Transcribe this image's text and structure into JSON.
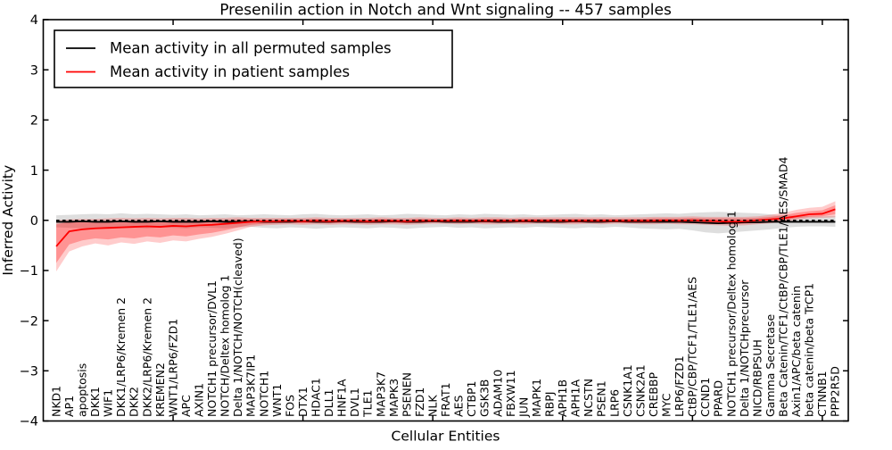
{
  "window": {
    "background": "#ffffff"
  },
  "title": "Presenilin action in Notch and Wnt signaling -- 457 samples",
  "legend": {
    "position": "upper left",
    "items": [
      {
        "label": "Mean activity in all permuted samples",
        "color": "#000000"
      },
      {
        "label": "Mean activity in patient samples",
        "color": "#ff0000"
      }
    ]
  },
  "colors": {
    "frame": "#000000",
    "permuted_line": "#000000",
    "patient_line": "#ff0000",
    "permuted_band": "rgba(0,0,0,0.13)",
    "patient_band_outer": "rgba(255,0,0,0.20)",
    "patient_band_inner": "rgba(255,0,0,0.28)",
    "zero_line": "#000000"
  },
  "chart_data": {
    "type": "line",
    "title": "Presenilin action in Notch and Wnt signaling -- 457 samples",
    "xlabel": "Cellular Entities",
    "ylabel": "Inferred Activity",
    "ylim": [
      -4,
      4
    ],
    "xlim": [
      0,
      62
    ],
    "grid": false,
    "legend_position": "upper left",
    "ytick_values": [
      4,
      3,
      2,
      1,
      0,
      -1,
      -2,
      -3,
      -4
    ],
    "ytick_labels": [
      "4",
      "3",
      "2",
      "1",
      "0",
      "−1",
      "−2",
      "−3",
      "−4"
    ],
    "xtick_values": [
      10,
      20,
      30,
      40,
      50,
      60
    ],
    "baseline": {
      "value": 0,
      "style": "dashed",
      "color": "#000000"
    },
    "categories": [
      "NKD1",
      "AP1",
      "apoptosis",
      "DKK1",
      "WIF1",
      "DKK1/LRP6/Kremen 2",
      "DKK2",
      "DKK2/LRP6/Kremen 2",
      "KREMEN2",
      "WNT1/LRP6/FZD1",
      "APC",
      "AXIN1",
      "NOTCH1 precursor/DVL1",
      "NOTCH/Deltex homolog 1",
      "Delta 1/NOTCH/NOTCH(cleaved)",
      "MAP3K7IP1",
      "NOTCH1",
      "WNT1",
      "FOS",
      "DTX1",
      "HDAC1",
      "DLL1",
      "HNF1A",
      "DVL1",
      "TLE1",
      "MAP3K7",
      "MAPK3",
      "PSENEN",
      "FZD1",
      "NLK",
      "FRAT1",
      "AES",
      "CTBP1",
      "GSK3B",
      "ADAM10",
      "FBXW11",
      "JUN",
      "MAPK1",
      "RBPJ",
      "APH1B",
      "APH1A",
      "NCSTN",
      "PSEN1",
      "LRP6",
      "CSNK1A1",
      "CSNK2A1",
      "CREBBP",
      "MYC",
      "LRP6/FZD1",
      "CtBP/CBP/TCF1/TLE1/AES",
      "CCND1",
      "PPARD",
      "NOTCH1 precursor/Deltex homolog 1",
      "Delta 1/NOTCHprecursor",
      "NICD/RBPSUH",
      "Gamma Secretase",
      "Beta Catenin/TCF1/CtBP/CBP/TLE1/AES/SMAD4",
      "Axin1/APC/beta catenin",
      "beta catenin/beta TrCP1",
      "CTNNB1",
      "PPP2R5D"
    ],
    "series": [
      {
        "name": "Mean activity in all permuted samples",
        "color": "#000000",
        "values": [
          -0.03,
          -0.03,
          -0.02,
          -0.03,
          -0.03,
          -0.02,
          -0.03,
          -0.03,
          -0.02,
          -0.03,
          -0.03,
          -0.03,
          -0.02,
          -0.03,
          -0.03,
          -0.02,
          -0.03,
          -0.03,
          -0.03,
          -0.02,
          -0.03,
          -0.03,
          -0.02,
          -0.03,
          -0.03,
          -0.03,
          -0.02,
          -0.03,
          -0.03,
          -0.02,
          -0.03,
          -0.03,
          -0.03,
          -0.02,
          -0.03,
          -0.03,
          -0.02,
          -0.03,
          -0.03,
          -0.03,
          -0.02,
          -0.03,
          -0.03,
          -0.02,
          -0.03,
          -0.03,
          -0.03,
          -0.03,
          -0.03,
          -0.04,
          -0.05,
          -0.06,
          -0.05,
          -0.04,
          -0.04,
          -0.03,
          -0.03,
          -0.03,
          -0.03,
          -0.03,
          -0.03
        ]
      },
      {
        "name": "Mean activity in patient samples",
        "color": "#ff0000",
        "values": [
          -0.52,
          -0.22,
          -0.18,
          -0.16,
          -0.15,
          -0.14,
          -0.13,
          -0.12,
          -0.13,
          -0.11,
          -0.12,
          -0.1,
          -0.09,
          -0.07,
          -0.05,
          -0.03,
          -0.02,
          -0.02,
          -0.01,
          -0.02,
          -0.01,
          -0.02,
          -0.01,
          -0.01,
          -0.02,
          -0.01,
          -0.01,
          -0.02,
          -0.01,
          -0.01,
          -0.01,
          -0.01,
          -0.01,
          -0.01,
          -0.01,
          -0.01,
          -0.01,
          -0.01,
          -0.01,
          -0.01,
          -0.01,
          -0.01,
          -0.01,
          -0.01,
          -0.01,
          -0.01,
          -0.01,
          0.0,
          -0.01,
          0.0,
          -0.01,
          -0.02,
          -0.03,
          -0.02,
          0.0,
          0.02,
          0.04,
          0.08,
          0.12,
          0.13,
          0.22
        ]
      }
    ],
    "bands": [
      {
        "name": "permuted-range",
        "color": "rgba(0,0,0,0.13)",
        "upper": [
          0.1,
          0.11,
          0.12,
          0.13,
          0.12,
          0.14,
          0.12,
          0.13,
          0.12,
          0.11,
          0.12,
          0.1,
          0.11,
          0.12,
          0.1,
          0.11,
          0.12,
          0.11,
          0.1,
          0.12,
          0.13,
          0.11,
          0.1,
          0.11,
          0.12,
          0.1,
          0.11,
          0.13,
          0.12,
          0.11,
          0.1,
          0.12,
          0.11,
          0.13,
          0.12,
          0.11,
          0.12,
          0.1,
          0.11,
          0.12,
          0.13,
          0.11,
          0.12,
          0.1,
          0.11,
          0.12,
          0.13,
          0.14,
          0.13,
          0.15,
          0.16,
          0.17,
          0.16,
          0.15,
          0.14,
          0.12,
          0.1,
          0.09,
          0.08,
          0.08,
          0.09
        ],
        "lower": [
          -0.14,
          -0.15,
          -0.16,
          -0.15,
          -0.17,
          -0.16,
          -0.15,
          -0.16,
          -0.14,
          -0.15,
          -0.16,
          -0.14,
          -0.15,
          -0.16,
          -0.14,
          -0.13,
          -0.15,
          -0.16,
          -0.14,
          -0.15,
          -0.17,
          -0.15,
          -0.14,
          -0.15,
          -0.16,
          -0.14,
          -0.15,
          -0.17,
          -0.15,
          -0.14,
          -0.13,
          -0.15,
          -0.14,
          -0.16,
          -0.15,
          -0.14,
          -0.15,
          -0.13,
          -0.14,
          -0.15,
          -0.16,
          -0.14,
          -0.15,
          -0.13,
          -0.14,
          -0.16,
          -0.17,
          -0.18,
          -0.17,
          -0.2,
          -0.24,
          -0.26,
          -0.24,
          -0.22,
          -0.2,
          -0.18,
          -0.15,
          -0.13,
          -0.12,
          -0.12,
          -0.13
        ]
      },
      {
        "name": "patient-outer-range",
        "color": "rgba(255,0,0,0.20)",
        "upper": [
          0.0,
          0.02,
          0.03,
          0.03,
          0.04,
          0.05,
          0.04,
          0.05,
          0.04,
          0.05,
          0.05,
          0.04,
          0.05,
          0.05,
          0.06,
          0.05,
          0.05,
          0.05,
          0.05,
          0.05,
          0.06,
          0.05,
          0.05,
          0.05,
          0.05,
          0.06,
          0.05,
          0.05,
          0.06,
          0.05,
          0.05,
          0.06,
          0.05,
          0.06,
          0.06,
          0.05,
          0.06,
          0.06,
          0.06,
          0.06,
          0.06,
          0.06,
          0.06,
          0.06,
          0.06,
          0.06,
          0.07,
          0.07,
          0.07,
          0.08,
          0.07,
          0.07,
          0.07,
          0.07,
          0.08,
          0.11,
          0.15,
          0.21,
          0.25,
          0.27,
          0.38
        ],
        "lower": [
          -1.02,
          -0.62,
          -0.52,
          -0.46,
          -0.5,
          -0.44,
          -0.47,
          -0.42,
          -0.45,
          -0.4,
          -0.42,
          -0.37,
          -0.33,
          -0.27,
          -0.2,
          -0.13,
          -0.1,
          -0.09,
          -0.08,
          -0.09,
          -0.08,
          -0.09,
          -0.08,
          -0.08,
          -0.09,
          -0.08,
          -0.08,
          -0.09,
          -0.08,
          -0.07,
          -0.07,
          -0.08,
          -0.07,
          -0.08,
          -0.08,
          -0.07,
          -0.08,
          -0.07,
          -0.07,
          -0.08,
          -0.08,
          -0.07,
          -0.08,
          -0.07,
          -0.07,
          -0.08,
          -0.08,
          -0.07,
          -0.08,
          -0.08,
          -0.09,
          -0.1,
          -0.11,
          -0.1,
          -0.08,
          -0.06,
          -0.03,
          0.01,
          0.04,
          0.05,
          0.06
        ]
      },
      {
        "name": "patient-inner-range",
        "color": "rgba(255,0,0,0.28)",
        "upper": [
          -0.08,
          -0.03,
          -0.02,
          -0.02,
          -0.01,
          -0.01,
          -0.01,
          0.0,
          -0.01,
          0.0,
          0.0,
          0.0,
          0.01,
          0.01,
          0.02,
          0.02,
          0.02,
          0.02,
          0.02,
          0.02,
          0.03,
          0.02,
          0.02,
          0.02,
          0.02,
          0.03,
          0.02,
          0.02,
          0.03,
          0.02,
          0.02,
          0.03,
          0.02,
          0.03,
          0.03,
          0.02,
          0.03,
          0.03,
          0.03,
          0.03,
          0.03,
          0.03,
          0.03,
          0.03,
          0.03,
          0.03,
          0.04,
          0.04,
          0.04,
          0.05,
          0.04,
          0.04,
          0.04,
          0.04,
          0.05,
          0.07,
          0.1,
          0.15,
          0.18,
          0.2,
          0.3
        ],
        "lower": [
          -0.85,
          -0.48,
          -0.4,
          -0.36,
          -0.38,
          -0.34,
          -0.36,
          -0.32,
          -0.34,
          -0.3,
          -0.32,
          -0.28,
          -0.25,
          -0.2,
          -0.14,
          -0.09,
          -0.07,
          -0.06,
          -0.05,
          -0.06,
          -0.05,
          -0.06,
          -0.05,
          -0.05,
          -0.06,
          -0.05,
          -0.05,
          -0.06,
          -0.05,
          -0.04,
          -0.04,
          -0.05,
          -0.04,
          -0.05,
          -0.05,
          -0.04,
          -0.05,
          -0.04,
          -0.04,
          -0.05,
          -0.05,
          -0.04,
          -0.05,
          -0.04,
          -0.04,
          -0.05,
          -0.05,
          -0.04,
          -0.05,
          -0.05,
          -0.06,
          -0.07,
          -0.08,
          -0.07,
          -0.05,
          -0.03,
          0.0,
          0.04,
          0.07,
          0.08,
          0.12
        ]
      }
    ]
  }
}
